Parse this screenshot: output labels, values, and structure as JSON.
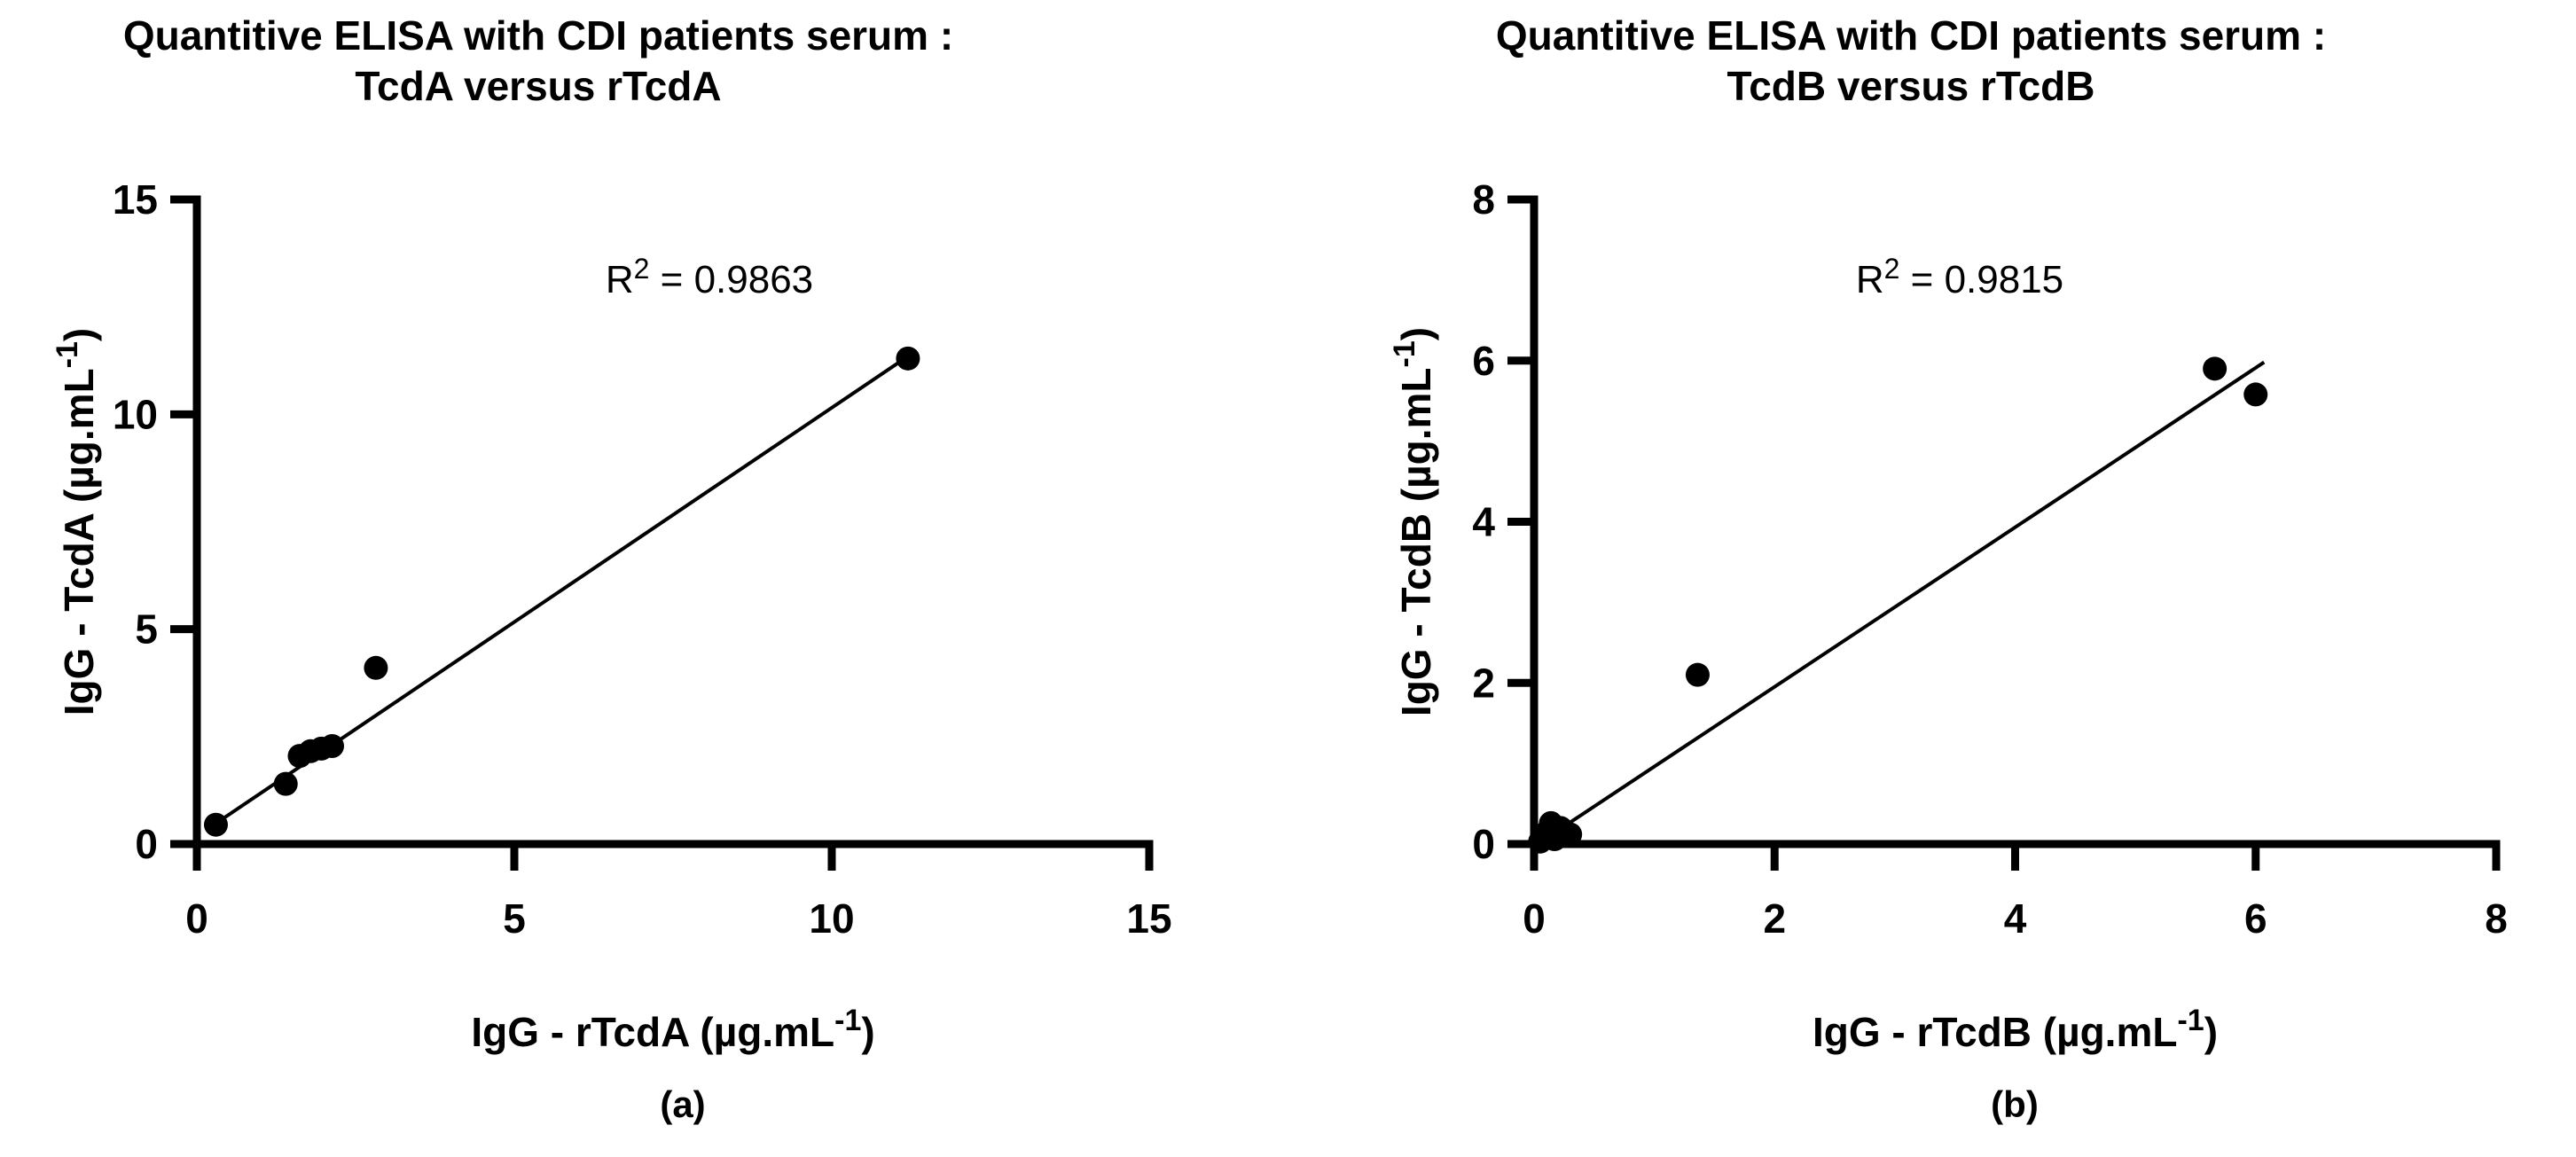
{
  "colors": {
    "foreground": "#000000",
    "background": "#ffffff"
  },
  "chart_data": [
    {
      "type": "scatter",
      "panel": "a",
      "caption": "(a)",
      "title": "Quantitive ELISA with CDI patients serum : TcdA versus rTcdA",
      "title_lines": [
        "Quantitive ELISA with CDI patients serum :",
        "TcdA versus rTcdA"
      ],
      "xlabel": "IgG - rTcdA (µg.mL⁻¹)",
      "ylabel": "IgG - TcdA (µg.mL⁻¹)",
      "xlabel_parts": {
        "pre": "IgG - rTcdA (µg.mL",
        "sup": "-1",
        "post": ")"
      },
      "ylabel_parts": {
        "pre": "IgG - TcdA (µg.mL",
        "sup": "-1",
        "post": ")"
      },
      "xlim": [
        0,
        15
      ],
      "ylim": [
        0,
        15
      ],
      "xticks": [
        0,
        5,
        10,
        15
      ],
      "yticks": [
        0,
        5,
        10,
        15
      ],
      "grid": false,
      "legend": null,
      "r_squared": 0.9863,
      "annotation": {
        "base": "R",
        "sup": "2",
        "rest": " = 0.9863"
      },
      "points": [
        [
          0.3,
          0.45
        ],
        [
          1.4,
          1.4
        ],
        [
          1.62,
          2.05
        ],
        [
          1.79,
          2.16
        ],
        [
          1.96,
          2.22
        ],
        [
          2.13,
          2.28
        ],
        [
          2.82,
          4.1
        ],
        [
          11.2,
          11.3
        ]
      ],
      "regression_line": {
        "x1": 0.3,
        "y1": 0.48,
        "x2": 11.2,
        "y2": 11.35
      },
      "marker_color": "#000000",
      "line_color": "#000000"
    },
    {
      "type": "scatter",
      "panel": "b",
      "caption": "(b)",
      "title": "Quantitive ELISA with CDI patients serum : TcdB versus rTcdB",
      "title_lines": [
        "Quantitive ELISA with CDI patients serum :",
        "TcdB versus rTcdB"
      ],
      "xlabel": "IgG - rTcdB (µg.mL⁻¹)",
      "ylabel": "IgG - TcdB (µg.mL⁻¹)",
      "xlabel_parts": {
        "pre": "IgG - rTcdB (µg.mL",
        "sup": "-1",
        "post": ")"
      },
      "ylabel_parts": {
        "pre": "IgG - TcdB (µg.mL",
        "sup": "-1",
        "post": ")"
      },
      "xlim": [
        0,
        8
      ],
      "ylim": [
        0,
        8
      ],
      "xticks": [
        0,
        2,
        4,
        6,
        8
      ],
      "yticks": [
        0,
        2,
        4,
        6,
        8
      ],
      "grid": false,
      "legend": null,
      "r_squared": 0.9815,
      "annotation": {
        "base": "R",
        "sup": "2",
        "rest": " = 0.9815"
      },
      "points": [
        [
          0.05,
          0.03
        ],
        [
          0.1,
          0.14
        ],
        [
          0.17,
          0.06
        ],
        [
          0.22,
          0.2
        ],
        [
          0.3,
          0.12
        ],
        [
          0.14,
          0.26
        ],
        [
          1.36,
          2.1
        ],
        [
          5.66,
          5.9
        ],
        [
          6.0,
          5.58
        ]
      ],
      "regression_line": {
        "x1": 0.18,
        "y1": 0.15,
        "x2": 6.07,
        "y2": 5.98
      },
      "marker_color": "#000000",
      "line_color": "#000000"
    }
  ]
}
